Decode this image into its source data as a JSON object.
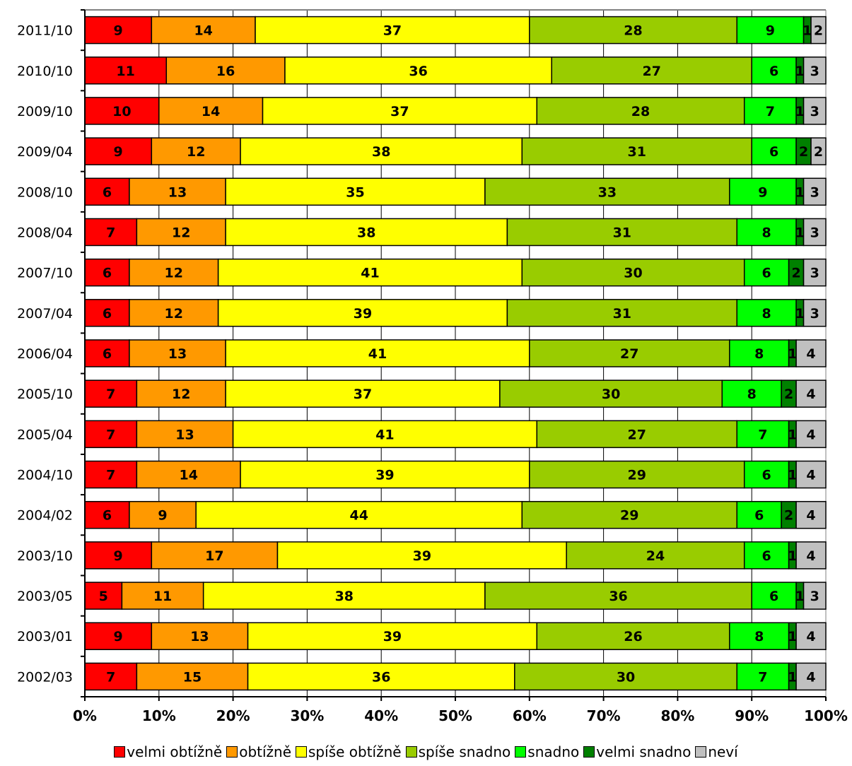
{
  "chart_data": {
    "type": "bar",
    "orientation": "horizontal",
    "stacked": "100%",
    "categories": [
      "2011/10",
      "2010/10",
      "2009/10",
      "2009/04",
      "2008/10",
      "2008/04",
      "2007/10",
      "2007/04",
      "2006/04",
      "2005/10",
      "2005/04",
      "2004/10",
      "2004/02",
      "2003/10",
      "2003/05",
      "2003/01",
      "2002/03"
    ],
    "series": [
      {
        "name": "velmi obtížně",
        "color": "#ff0000",
        "values": [
          9,
          11,
          10,
          9,
          6,
          7,
          6,
          6,
          6,
          7,
          7,
          7,
          6,
          9,
          5,
          9,
          7
        ]
      },
      {
        "name": "obtížně",
        "color": "#ff9900",
        "values": [
          14,
          16,
          14,
          12,
          13,
          12,
          12,
          12,
          13,
          12,
          13,
          14,
          9,
          17,
          11,
          13,
          15
        ]
      },
      {
        "name": "spíše obtížně",
        "color": "#ffff00",
        "values": [
          37,
          36,
          37,
          38,
          35,
          38,
          41,
          39,
          41,
          37,
          41,
          39,
          44,
          39,
          38,
          39,
          36
        ]
      },
      {
        "name": "spíše snadno",
        "color": "#99cc00",
        "values": [
          28,
          27,
          28,
          31,
          33,
          31,
          30,
          31,
          27,
          30,
          27,
          29,
          29,
          24,
          36,
          26,
          30
        ]
      },
      {
        "name": "snadno",
        "color": "#00ff00",
        "values": [
          9,
          6,
          7,
          6,
          9,
          8,
          6,
          8,
          8,
          8,
          7,
          6,
          6,
          6,
          6,
          8,
          7
        ]
      },
      {
        "name": "velmi snadno",
        "color": "#008000",
        "values": [
          1,
          1,
          1,
          2,
          1,
          1,
          2,
          1,
          1,
          2,
          1,
          1,
          2,
          1,
          1,
          1,
          1
        ]
      },
      {
        "name": "neví",
        "color": "#c0c0c0",
        "values": [
          2,
          3,
          3,
          2,
          3,
          3,
          3,
          3,
          4,
          4,
          4,
          4,
          4,
          4,
          3,
          4,
          4
        ]
      }
    ],
    "xaxis": {
      "ticks": [
        "0%",
        "10%",
        "20%",
        "30%",
        "40%",
        "50%",
        "60%",
        "70%",
        "80%",
        "90%",
        "100%"
      ],
      "range": [
        0,
        100
      ]
    },
    "grid": true,
    "legend_position": "bottom"
  }
}
